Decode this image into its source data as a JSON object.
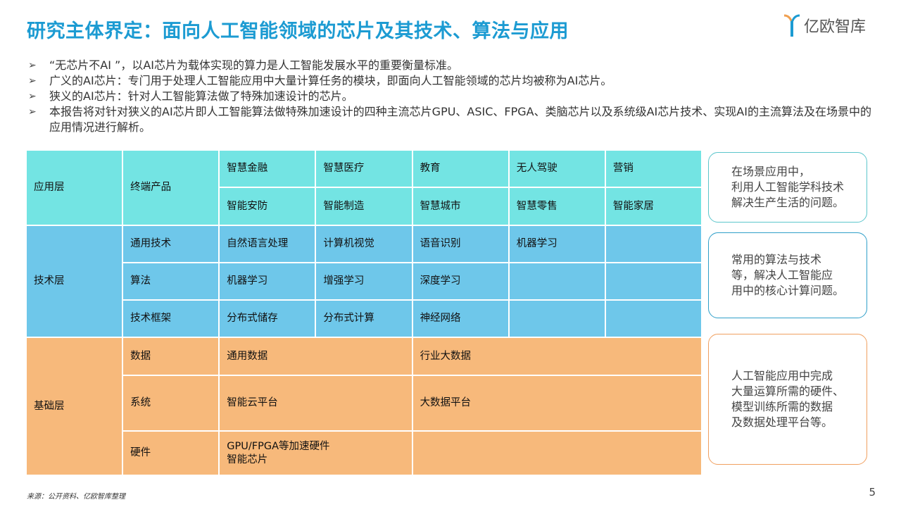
{
  "title": "研究主体界定：面向人工智能领域的芯片及其技术、算法与应用",
  "logo_text": "亿欧智库",
  "bullets": [
    "“无芯片不AI ”，以AI芯片为载体实现的算力是人工智能发展水平的重要衡量标准。",
    "广义的AI芯片：专门用于处理人工智能应用中大量计算任务的模块，即面向人工智能领域的芯片均被称为AI芯片。",
    "狭义的AI芯片：针对人工智能算法做了特殊加速设计的芯片。",
    "本报告将对针对狭义的AI芯片即人工智能算法做特殊加速设计的四种主流芯片GPU、ASIC、FPGA、类脑芯片以及系统级AI芯片技术、实现AI的主流算法及在场景中的应用情况进行解析。"
  ],
  "colors": {
    "title": "#1c9bd2",
    "app_layer": "#73e4e3",
    "tech_layer": "#6ec7ea",
    "base_layer": "#f7b97b"
  },
  "table": {
    "app": {
      "layer": "应用层",
      "sub": "终端产品",
      "row1": [
        "智慧金融",
        "智慧医疗",
        "教育",
        "无人驾驶",
        "营销"
      ],
      "row2": [
        "智能安防",
        "智能制造",
        "智慧城市",
        "智慧零售",
        "智能家居"
      ]
    },
    "tech": {
      "layer": "技术层",
      "rows": [
        {
          "sub": "通用技术",
          "items": [
            "自然语言处理",
            "计算机视觉",
            "语音识别",
            "机器学习"
          ]
        },
        {
          "sub": "算法",
          "items": [
            "机器学习",
            "增强学习",
            "深度学习"
          ]
        },
        {
          "sub": "技术框架",
          "items": [
            "分布式储存",
            "分布式计算",
            "神经网络"
          ]
        }
      ]
    },
    "base": {
      "layer": "基础层",
      "rows": [
        {
          "sub": "数据",
          "items": [
            "通用数据",
            "行业大数据"
          ]
        },
        {
          "sub": "系统",
          "items": [
            "智能云平台",
            "大数据平台"
          ]
        },
        {
          "sub": "硬件",
          "items": [
            "GPU/FPGA等加速硬件",
            "智能芯片"
          ]
        }
      ]
    }
  },
  "notes": [
    {
      "lines": [
        "在场景应用中，",
        "利用人工智能学科技术",
        "解决生产生活的问题。"
      ],
      "color": "#5cc6cc"
    },
    {
      "lines": [
        "常用的算法与技术",
        "等，解决人工智能应",
        "用中的核心计算问题。"
      ],
      "color": "#2f9fc9"
    },
    {
      "lines": [
        "人工智能应用中完成",
        "大量运算所需的硬件、",
        "模型训练所需的数据",
        "及数据处理平台等。"
      ],
      "color": "#f0a060"
    }
  ],
  "footer": "来源：公开资料、亿欧智库整理",
  "page_number": "5"
}
